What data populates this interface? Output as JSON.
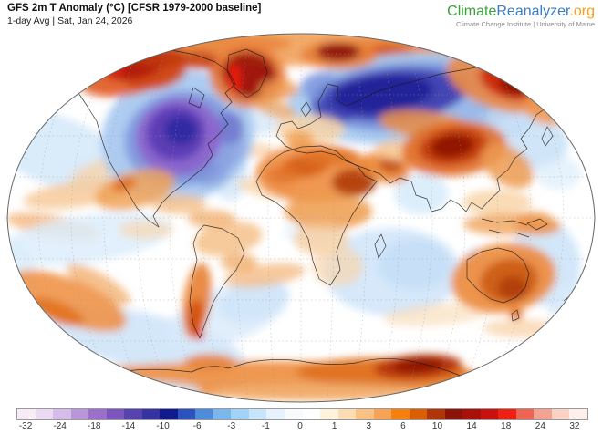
{
  "header": {
    "title": "GFS 2m T Anomaly (°C) [CFSR 1979-2000 baseline]",
    "subtitle": "1-day Avg | Sat, Jan 24, 2026"
  },
  "logo": {
    "part1": "Climate",
    "part2": "Reanalyzer",
    "part3": ".org",
    "tagline": "Climate Change Institute | University of Maine",
    "colors": {
      "part1": "#3aa238",
      "part2": "#3b7cc4",
      "part3": "#f5a01e"
    }
  },
  "colorbar": {
    "tick_labels": [
      "-32",
      "-24",
      "-18",
      "-14",
      "-10",
      "-6",
      "-3",
      "-1",
      "0",
      "1",
      "3",
      "6",
      "10",
      "14",
      "18",
      "24",
      "32"
    ],
    "segment_colors": [
      "#f7ecf5",
      "#ead9f1",
      "#d6bce8",
      "#b995da",
      "#9b70cb",
      "#7b55bd",
      "#5743af",
      "#3632a2",
      "#101b8e",
      "#2c52bf",
      "#4e8bdb",
      "#79b7ec",
      "#a2d2f5",
      "#c8e4fa",
      "#e6f2fd",
      "#f7fbfe",
      "#ffffff",
      "#fdf2dc",
      "#fbddb4",
      "#f9c184",
      "#f7a254",
      "#f67f0e",
      "#dc5e04",
      "#b03609",
      "#8c1307",
      "#a81109",
      "#c81210",
      "#ed2012",
      "#ef6450",
      "#f4a392",
      "#f9d2c6",
      "#fdf0ea"
    ]
  },
  "map": {
    "background": "#ffffff",
    "outline_color": "#666666",
    "coastline_color": "#1a1a1a",
    "graticule_color": "#999999",
    "anomaly_blobs": [
      [
        60,
        165,
        75,
        38,
        20,
        "#d4e8f9",
        0.85
      ],
      [
        118,
        184,
        42,
        11,
        -18,
        "#f8d2a4",
        0.7
      ],
      [
        85,
        213,
        60,
        14,
        -8,
        "#f6c793",
        0.8
      ],
      [
        58,
        248,
        52,
        12,
        10,
        "#f3b273",
        0.75
      ],
      [
        95,
        262,
        95,
        26,
        -8,
        "#dcedfb",
        0.85
      ],
      [
        160,
        252,
        30,
        10,
        0,
        "#f8d8b0",
        0.7
      ],
      [
        150,
        372,
        120,
        30,
        12,
        "#cfe4f8",
        0.9
      ],
      [
        250,
        345,
        70,
        30,
        -20,
        "#d8eafa",
        0.8
      ],
      [
        278,
        330,
        40,
        22,
        -15,
        "#cde3f8",
        0.75
      ],
      [
        430,
        298,
        75,
        48,
        0,
        "#d2e6f9",
        0.9
      ],
      [
        455,
        290,
        40,
        28,
        0,
        "#c3ddf6",
        0.8
      ],
      [
        598,
        288,
        38,
        48,
        -10,
        "#cde4f8",
        0.9
      ],
      [
        628,
        332,
        28,
        22,
        0,
        "#d8eafa",
        0.85
      ],
      [
        462,
        213,
        30,
        22,
        0,
        "#d9ecfb",
        0.9
      ],
      [
        585,
        158,
        38,
        28,
        0,
        "#c8e0f7",
        0.85
      ],
      [
        612,
        190,
        25,
        18,
        0,
        "#dcedfb",
        0.7
      ],
      [
        285,
        128,
        32,
        20,
        0,
        "#d5e9fa",
        0.8
      ],
      [
        252,
        190,
        20,
        30,
        0,
        "#cbe2f7",
        0.7
      ],
      [
        418,
        148,
        16,
        10,
        0,
        "#b9d6f2",
        0.9
      ],
      [
        175,
        420,
        90,
        16,
        0,
        "#d8eafa",
        0.9
      ],
      [
        345,
        255,
        35,
        14,
        0,
        "#e4f2fc",
        0.7
      ],
      [
        520,
        300,
        14,
        28,
        0,
        "#cbe2f7",
        0.9
      ],
      [
        292,
        207,
        32,
        10,
        12,
        "#f8d2a4",
        0.7
      ],
      [
        282,
        165,
        20,
        8,
        0,
        "#f6c793",
        0.6
      ],
      [
        12,
        130,
        18,
        50,
        15,
        "#f0a257",
        0.7
      ],
      [
        20,
        300,
        20,
        40,
        -15,
        "#dcedfb",
        0.8
      ],
      [
        480,
        345,
        60,
        12,
        -5,
        "#f8d8b0",
        0.6
      ],
      [
        570,
        360,
        40,
        10,
        0,
        "#f6c793",
        0.6
      ],
      [
        290,
        302,
        45,
        12,
        -8,
        "#f3b273",
        0.7
      ],
      [
        108,
        312,
        40,
        12,
        30,
        "#f3b273",
        0.8
      ],
      [
        330,
        52,
        300,
        20,
        0,
        "#f2a561",
        0.95
      ],
      [
        200,
        48,
        120,
        14,
        0,
        "#e8843c",
        0.8
      ],
      [
        480,
        52,
        120,
        14,
        0,
        "#e8843c",
        0.8
      ],
      [
        425,
        60,
        30,
        11,
        0,
        "#cf4d14",
        0.85
      ],
      [
        195,
        150,
        85,
        72,
        -15,
        "#aac9f0",
        0.95
      ],
      [
        198,
        152,
        62,
        52,
        -12,
        "#7f97de",
        0.9
      ],
      [
        225,
        170,
        30,
        35,
        -20,
        "#7a8fd9",
        0.6
      ],
      [
        245,
        155,
        25,
        30,
        -15,
        "#8ea6e2",
        0.8
      ],
      [
        252,
        140,
        15,
        18,
        0,
        "#6f74cd",
        0.8
      ],
      [
        196,
        150,
        47,
        42,
        -10,
        "#8b63cb",
        0.95
      ],
      [
        193,
        146,
        32,
        30,
        -10,
        "#5b3cb4",
        0.95
      ],
      [
        198,
        143,
        18,
        16,
        0,
        "#2e2ba1",
        0.95
      ],
      [
        450,
        108,
        135,
        50,
        -4,
        "#a9cdf1",
        0.95
      ],
      [
        445,
        106,
        105,
        38,
        -4,
        "#7b95dd",
        0.9
      ],
      [
        520,
        125,
        40,
        20,
        -15,
        "#9fc0ec",
        0.8
      ],
      [
        560,
        130,
        30,
        18,
        -20,
        "#c2dbf5",
        0.8
      ],
      [
        368,
        112,
        28,
        24,
        0,
        "#4549b4",
        0.85
      ],
      [
        352,
        95,
        22,
        16,
        0,
        "#7f97de",
        0.8
      ],
      [
        432,
        104,
        80,
        28,
        -5,
        "#3d3eb0",
        0.92
      ],
      [
        420,
        103,
        55,
        20,
        -6,
        "#1f2298",
        0.95
      ],
      [
        142,
        78,
        58,
        26,
        -12,
        "#e2571d",
        0.9
      ],
      [
        170,
        80,
        35,
        18,
        -10,
        "#cf4414",
        0.85
      ],
      [
        148,
        72,
        34,
        15,
        -12,
        "#b01e08",
        0.95
      ],
      [
        122,
        74,
        14,
        9,
        0,
        "#ec1a0c",
        0.9
      ],
      [
        175,
        62,
        30,
        12,
        0,
        "#c03a10",
        0.85
      ],
      [
        218,
        66,
        22,
        10,
        0,
        "#c5400f",
        0.85
      ],
      [
        240,
        75,
        12,
        8,
        0,
        "#a81a08",
        0.8
      ],
      [
        272,
        84,
        42,
        34,
        5,
        "#e97936",
        0.9
      ],
      [
        273,
        82,
        30,
        25,
        8,
        "#9c1507",
        0.95
      ],
      [
        257,
        86,
        7,
        16,
        0,
        "#ee1d0d",
        0.95
      ],
      [
        305,
        98,
        22,
        11,
        0,
        "#ef9a52",
        0.8
      ],
      [
        300,
        118,
        25,
        10,
        20,
        "#f0a257",
        0.7
      ],
      [
        372,
        60,
        42,
        16,
        0,
        "#e8813a",
        0.9
      ],
      [
        371,
        57,
        24,
        10,
        0,
        "#8f1206",
        0.95
      ],
      [
        548,
        90,
        60,
        30,
        18,
        "#ec8a42",
        0.9
      ],
      [
        556,
        90,
        32,
        18,
        22,
        "#cc2a0b",
        0.95
      ],
      [
        562,
        94,
        16,
        10,
        22,
        "#8f1206",
        0.95
      ],
      [
        605,
        115,
        30,
        22,
        0,
        "#f0954e",
        0.85
      ],
      [
        635,
        95,
        20,
        25,
        0,
        "#e8813a",
        0.8
      ],
      [
        340,
        142,
        38,
        16,
        0,
        "#f8d4a6",
        0.85
      ],
      [
        328,
        152,
        16,
        9,
        0,
        "#f2a459",
        0.9
      ],
      [
        345,
        190,
        65,
        32,
        0,
        "#ee8c3e",
        0.9
      ],
      [
        335,
        182,
        28,
        12,
        -10,
        "#d45c10",
        0.9
      ],
      [
        310,
        192,
        18,
        10,
        0,
        "#e2742a",
        0.8
      ],
      [
        362,
        172,
        32,
        10,
        0,
        "#e2742a",
        0.85
      ],
      [
        388,
        200,
        24,
        15,
        0,
        "#b23c0a",
        0.92
      ],
      [
        422,
        184,
        28,
        16,
        15,
        "#ec8838",
        0.9
      ],
      [
        428,
        181,
        13,
        8,
        10,
        "#c2490e",
        0.9
      ],
      [
        438,
        165,
        28,
        12,
        0,
        "#f6c48d",
        0.8
      ],
      [
        360,
        232,
        48,
        20,
        0,
        "#ef9c4e",
        0.85
      ],
      [
        352,
        262,
        30,
        18,
        0,
        "#f6c793",
        0.7
      ],
      [
        370,
        292,
        28,
        22,
        0,
        "#f8d6ae",
        0.7
      ],
      [
        470,
        138,
        55,
        16,
        8,
        "#ec9044",
        0.85
      ],
      [
        500,
        148,
        30,
        12,
        0,
        "#e2742a",
        0.8
      ],
      [
        498,
        163,
        58,
        30,
        -6,
        "#e06d27",
        0.9
      ],
      [
        497,
        161,
        38,
        20,
        -8,
        "#c23a0c",
        0.92
      ],
      [
        496,
        160,
        24,
        13,
        -8,
        "#8f1206",
        0.95
      ],
      [
        556,
        182,
        32,
        20,
        35,
        "#ef9a50",
        0.85
      ],
      [
        545,
        222,
        38,
        14,
        0,
        "#f8d2a4",
        0.8
      ],
      [
        556,
        246,
        48,
        12,
        0,
        "#f0a257",
        0.8
      ],
      [
        590,
        248,
        25,
        10,
        0,
        "#ec9044",
        0.8
      ],
      [
        148,
        208,
        45,
        20,
        -15,
        "#f0a257",
        0.85
      ],
      [
        136,
        202,
        14,
        7,
        -18,
        "#dd6d1f",
        0.9
      ],
      [
        196,
        224,
        30,
        11,
        0,
        "#f5c18a",
        0.8
      ],
      [
        250,
        262,
        38,
        18,
        -10,
        "#f5bd82",
        0.8
      ],
      [
        232,
        240,
        26,
        10,
        0,
        "#f3b273",
        0.8
      ],
      [
        262,
        288,
        20,
        10,
        0,
        "#f0a257",
        0.7
      ],
      [
        216,
        330,
        15,
        42,
        8,
        "#e87f31",
        0.9
      ],
      [
        214,
        348,
        9,
        20,
        6,
        "#d4500e",
        0.95
      ],
      [
        219,
        367,
        5,
        6,
        0,
        "#e81a0c",
        0.9
      ],
      [
        75,
        330,
        68,
        24,
        22,
        "#ef9448",
        0.9
      ],
      [
        62,
        342,
        32,
        11,
        22,
        "#e2721f",
        0.9
      ],
      [
        552,
        305,
        58,
        38,
        -8,
        "#ee8c3e",
        0.92
      ],
      [
        558,
        308,
        32,
        24,
        -10,
        "#cc5c12",
        0.95
      ],
      [
        562,
        316,
        16,
        13,
        0,
        "#b03d08",
        0.95
      ],
      [
        566,
        345,
        7,
        6,
        0,
        "#dd5f17",
        0.9
      ],
      [
        585,
        240,
        20,
        8,
        0,
        "#ef9a50",
        0.8
      ],
      [
        300,
        416,
        240,
        20,
        0,
        "#ee9247",
        0.95
      ],
      [
        420,
        408,
        95,
        16,
        0,
        "#e0701f",
        0.9
      ],
      [
        458,
        402,
        48,
        13,
        -4,
        "#b5330a",
        0.95
      ],
      [
        459,
        401,
        28,
        8,
        -4,
        "#8f1206",
        0.97
      ],
      [
        230,
        397,
        28,
        9,
        0,
        "#e87f31",
        0.85
      ],
      [
        350,
        430,
        120,
        10,
        0,
        "#f3b273",
        0.8
      ],
      [
        540,
        420,
        40,
        10,
        -10,
        "#f0a257",
        0.7
      ],
      [
        150,
        428,
        70,
        10,
        0,
        "#d5e9f9",
        0.9
      ]
    ]
  }
}
